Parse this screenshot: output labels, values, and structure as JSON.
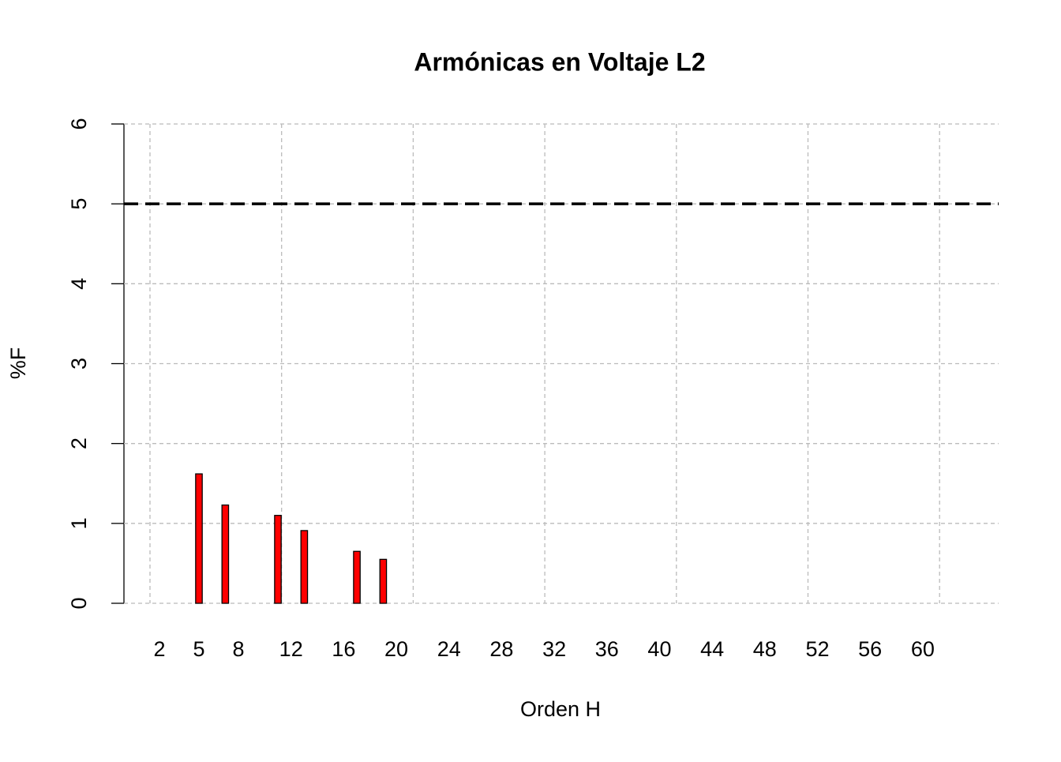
{
  "chart_data": {
    "type": "bar",
    "title": "Armónicas en Voltaje L2",
    "x_label": "Orden H",
    "y_label": "%F",
    "categories": [
      "2",
      null,
      null,
      "5",
      null,
      null,
      "8",
      null,
      null,
      null,
      "12",
      null,
      null,
      null,
      "16",
      null,
      null,
      null,
      "20",
      null,
      null,
      null,
      "24",
      null,
      null,
      null,
      "28",
      null,
      null,
      null,
      "32",
      null,
      null,
      null,
      "36",
      null,
      null,
      null,
      "40",
      null,
      null,
      null,
      "44",
      null,
      null,
      null,
      "48",
      null,
      null,
      null,
      "52",
      null,
      null,
      null,
      "56",
      null,
      null,
      null,
      "60",
      null,
      null,
      null
    ],
    "values": [
      0,
      0,
      0,
      1.62,
      0,
      1.23,
      0,
      0,
      0,
      1.1,
      0,
      0.91,
      0,
      0,
      0,
      0.65,
      0,
      0.55,
      0,
      0,
      0,
      0,
      0,
      0,
      0,
      0,
      0,
      0,
      0,
      0,
      0,
      0,
      0,
      0,
      0,
      0,
      0,
      0,
      0,
      0,
      0,
      0,
      0,
      0,
      0,
      0,
      0,
      0,
      0,
      0,
      0,
      0,
      0,
      0,
      0,
      0,
      0,
      0,
      0,
      0,
      0,
      0
    ],
    "color": "#ff0000",
    "ylim": [
      0,
      6
    ],
    "yticks": [
      0,
      1,
      2,
      3,
      4,
      5,
      6
    ],
    "grid": true,
    "reference_line": 5
  }
}
